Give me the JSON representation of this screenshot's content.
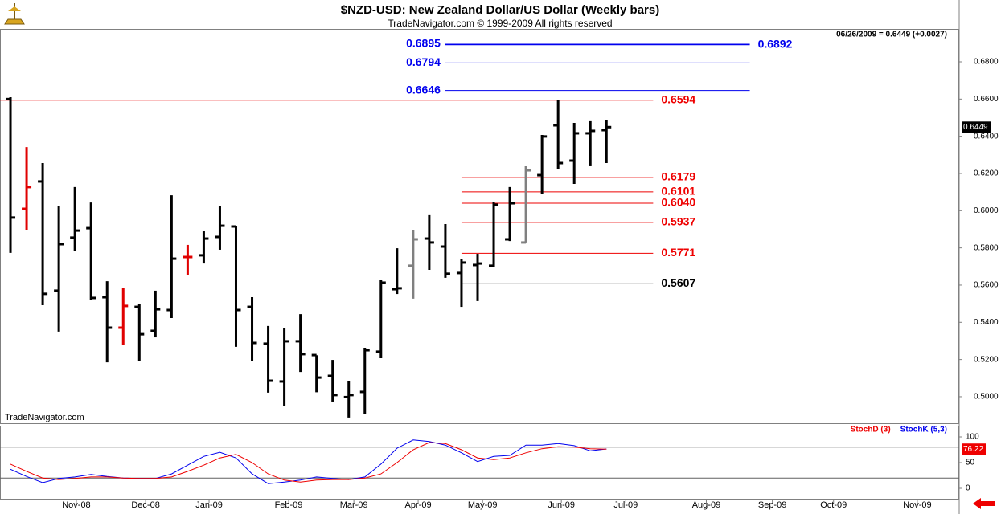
{
  "chart_data": [
    {
      "type": "ohlc",
      "title": "$NZD-USD:  New Zealand Dollar/US Dollar  (Weekly bars)",
      "subtitle": "TradeNavigator.com © 1999-2009 All rights reserved",
      "info": "06/26/2009 = 0.6449 (+0.0027)",
      "watermark": "TradeNavigator.com",
      "x": [
        0,
        1,
        2,
        3,
        4,
        5,
        6,
        7,
        8,
        9,
        10,
        11,
        12,
        13,
        14,
        15,
        16,
        17,
        18,
        19,
        20,
        21,
        22,
        23,
        24,
        25,
        26,
        27,
        28,
        29,
        30,
        31,
        32,
        33,
        34,
        35,
        36,
        37
      ],
      "open": [
        0.66,
        0.601,
        0.6157,
        0.557,
        0.5855,
        0.5906,
        0.5535,
        0.5371,
        0.5483,
        0.5354,
        0.5466,
        0.5751,
        0.576,
        0.5859,
        0.5915,
        0.5483,
        0.5285,
        0.5082,
        0.5298,
        0.5224,
        0.5112,
        0.4998,
        0.5026,
        0.5242,
        0.5578,
        0.5704,
        0.585,
        0.5807,
        0.5665,
        0.5708,
        0.5704,
        0.5846,
        0.5829,
        0.6191,
        0.6459,
        0.6269,
        0.6416,
        0.6433
      ],
      "high": [
        0.661,
        0.6342,
        0.6256,
        0.6027,
        0.6127,
        0.6044,
        0.5621,
        0.5587,
        0.5496,
        0.557,
        0.6083,
        0.5816,
        0.5889,
        0.6027,
        0.5915,
        0.5535,
        0.538,
        0.5367,
        0.5444,
        0.5223,
        0.5198,
        0.5086,
        0.5263,
        0.5626,
        0.5798,
        0.5898,
        0.5976,
        0.5928,
        0.5738,
        0.5768,
        0.6049,
        0.6127,
        0.6239,
        0.6407,
        0.6593,
        0.6472,
        0.6481,
        0.6485
      ],
      "low": [
        0.5773,
        0.5898,
        0.5492,
        0.535,
        0.5781,
        0.5522,
        0.5185,
        0.5276,
        0.5194,
        0.5319,
        0.5423,
        0.5652,
        0.5716,
        0.579,
        0.5268,
        0.5194,
        0.5022,
        0.4948,
        0.5133,
        0.5024,
        0.4974,
        0.4888,
        0.4905,
        0.5207,
        0.5552,
        0.5527,
        0.5682,
        0.5639,
        0.5483,
        0.5514,
        0.5699,
        0.5837,
        0.5829,
        0.6092,
        0.6226,
        0.6144,
        0.6239,
        0.6256
      ],
      "close": [
        0.5963,
        0.6127,
        0.5553,
        0.582,
        0.5893,
        0.5531,
        0.5371,
        0.5488,
        0.5336,
        0.547,
        0.5742,
        0.5751,
        0.585,
        0.5919,
        0.5466,
        0.5289,
        0.5086,
        0.5298,
        0.5229,
        0.5103,
        0.5009,
        0.5009,
        0.525,
        0.5613,
        0.5583,
        0.5846,
        0.5829,
        0.5661,
        0.5721,
        0.5716,
        0.6032,
        0.604,
        0.6217,
        0.6399,
        0.6256,
        0.6416,
        0.6429,
        0.6449
      ],
      "bar_colors": [
        "#000000",
        "#e00000",
        "#000000",
        "#000000",
        "#000000",
        "#000000",
        "#000000",
        "#e00000",
        "#000000",
        "#000000",
        "#000000",
        "#e00000",
        "#000000",
        "#000000",
        "#000000",
        "#000000",
        "#000000",
        "#000000",
        "#000000",
        "#000000",
        "#000000",
        "#000000",
        "#000000",
        "#000000",
        "#000000",
        "#808080",
        "#000000",
        "#000000",
        "#000000",
        "#000000",
        "#000000",
        "#000000",
        "#808080",
        "#000000",
        "#000000",
        "#000000",
        "#000000",
        "#000000"
      ],
      "xlim": [
        -0.65,
        58.9
      ],
      "ylim": [
        0.4853,
        0.6977
      ],
      "yticks": [
        {
          "value": 0.5,
          "label": "0.5000"
        },
        {
          "value": 0.52,
          "label": "0.5200"
        },
        {
          "value": 0.54,
          "label": "0.5400"
        },
        {
          "value": 0.56,
          "label": "0.5600"
        },
        {
          "value": 0.58,
          "label": "0.5800"
        },
        {
          "value": 0.6,
          "label": "0.6000"
        },
        {
          "value": 0.62,
          "label": "0.6200"
        },
        {
          "value": 0.64,
          "label": "0.6400"
        },
        {
          "value": 0.66,
          "label": "0.6600"
        },
        {
          "value": 0.68,
          "label": "0.6800"
        }
      ],
      "levels": [
        {
          "value": 0.6895,
          "label": "0.6895",
          "color": "#0000ee",
          "x": [
            27,
            45.9
          ],
          "label_side": "left"
        },
        {
          "value": 0.6892,
          "label": "0.6892",
          "color": "#0000ee",
          "x": [
            27,
            45.9
          ],
          "label_side": "right"
        },
        {
          "value": 0.6794,
          "label": "0.6794",
          "color": "#0000ee",
          "x": [
            27,
            45.9
          ],
          "label_side": "left"
        },
        {
          "value": 0.6646,
          "label": "0.6646",
          "color": "#0000ee",
          "x": [
            27,
            45.9
          ],
          "label_side": "left"
        },
        {
          "value": 0.6594,
          "label": "0.6594",
          "color": "#ee0000",
          "x": [
            -0.65,
            39.9
          ],
          "label_side": "right"
        },
        {
          "value": 0.6179,
          "label": "0.6179",
          "color": "#ee0000",
          "x": [
            28,
            39.9
          ],
          "label_side": "right"
        },
        {
          "value": 0.6101,
          "label": "0.6101",
          "color": "#ee0000",
          "x": [
            28,
            39.9
          ],
          "label_side": "right"
        },
        {
          "value": 0.604,
          "label": "0.6040",
          "color": "#ee0000",
          "x": [
            28,
            39.9
          ],
          "label_side": "right"
        },
        {
          "value": 0.5937,
          "label": "0.5937",
          "color": "#ee0000",
          "x": [
            28,
            39.9
          ],
          "label_side": "right"
        },
        {
          "value": 0.5771,
          "label": "0.5771",
          "color": "#ee0000",
          "x": [
            28,
            39.9
          ],
          "label_side": "right"
        },
        {
          "value": 0.5607,
          "label": "0.5607",
          "color": "#000000",
          "x": [
            28,
            39.9
          ],
          "label_side": "right"
        }
      ]
    },
    {
      "type": "line",
      "x": [
        0,
        1,
        2,
        3,
        4,
        5,
        6,
        7,
        8,
        9,
        10,
        11,
        12,
        13,
        14,
        15,
        16,
        17,
        18,
        19,
        20,
        21,
        22,
        23,
        24,
        25,
        26,
        27,
        28,
        29,
        30,
        31,
        32,
        33,
        34,
        35,
        36,
        37
      ],
      "series": [
        {
          "name": "StochD (3)",
          "color": "#ee0000",
          "values": [
            47,
            33,
            20,
            17,
            19,
            22,
            22,
            20,
            19,
            19,
            22,
            33,
            45,
            59,
            66,
            50,
            28,
            16,
            12,
            16,
            17,
            17,
            20,
            28,
            50,
            75,
            89,
            87,
            75,
            59,
            56,
            59,
            69,
            77,
            81,
            80,
            77,
            76.22
          ]
        },
        {
          "name": "StochK (5,3)",
          "color": "#0000ee",
          "values": [
            37,
            23,
            11,
            19,
            22,
            27,
            23,
            20,
            19,
            19,
            28,
            45,
            62,
            70,
            59,
            28,
            9,
            12,
            16,
            22,
            19,
            17,
            22,
            47,
            78,
            94,
            91,
            84,
            69,
            52,
            62,
            64,
            84,
            84,
            87,
            83,
            73,
            76.5
          ]
        }
      ],
      "xlim": [
        -0.65,
        58.9
      ],
      "ylim": [
        -21.9,
        121.9
      ],
      "yticks": [
        0,
        50,
        100
      ],
      "bands": [
        20,
        80
      ],
      "xticks": [
        {
          "value": 4.09,
          "label": "Nov-08"
        },
        {
          "value": 8.39,
          "label": "Dec-08"
        },
        {
          "value": 12.33,
          "label": "Jan-09"
        },
        {
          "value": 17.27,
          "label": "Feb-09"
        },
        {
          "value": 21.32,
          "label": "Mar-09"
        },
        {
          "value": 25.31,
          "label": "Apr-09"
        },
        {
          "value": 29.31,
          "label": "May-09"
        },
        {
          "value": 34.2,
          "label": "Jun-09"
        },
        {
          "value": 38.2,
          "label": "Jul-09"
        },
        {
          "value": 43.2,
          "label": "Aug-09"
        },
        {
          "value": 47.3,
          "label": "Sep-09"
        },
        {
          "value": 51.1,
          "label": "Oct-09"
        },
        {
          "value": 56.3,
          "label": "Nov-09"
        }
      ]
    }
  ]
}
